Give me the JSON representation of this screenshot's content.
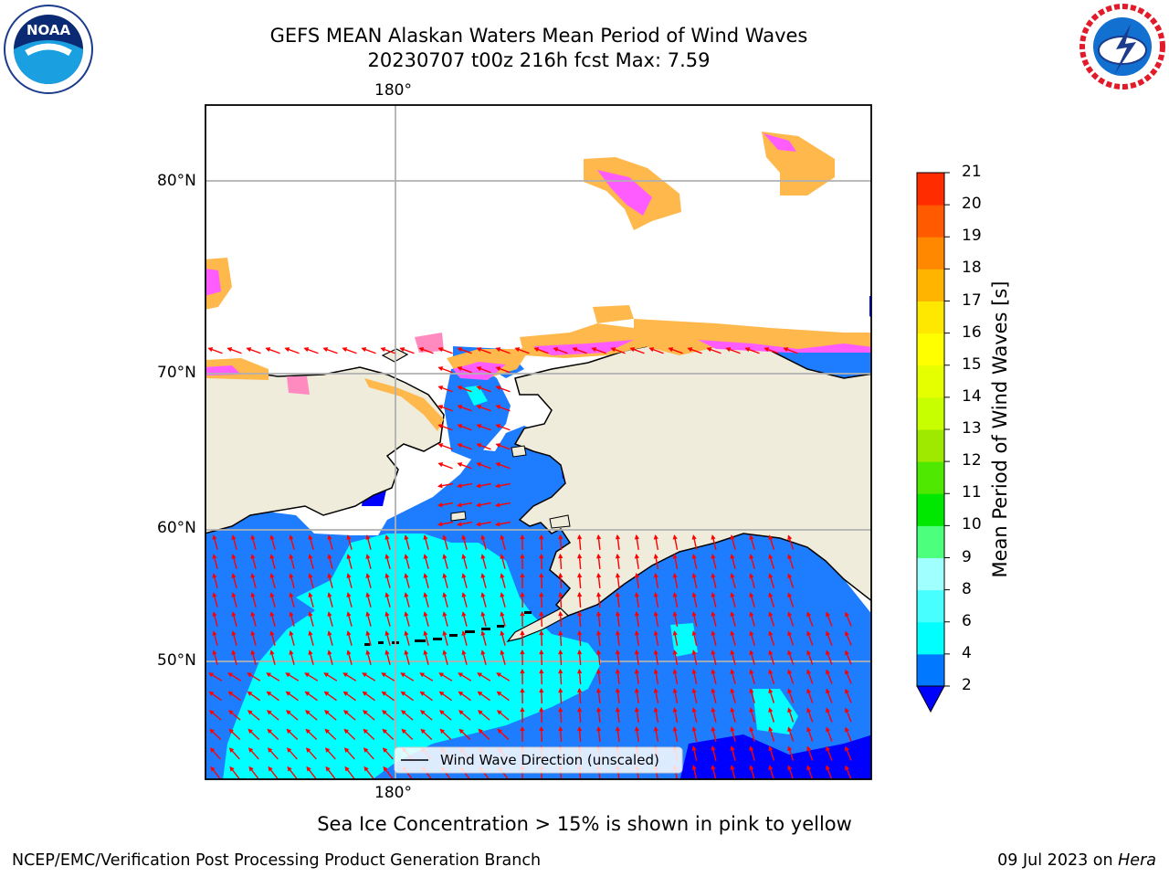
{
  "title": {
    "line1": "GEFS MEAN Alaskan Waters Mean Period of Wind Waves",
    "line2": "20230707 t00z 216h fcst   Max: 7.59"
  },
  "logos": {
    "left": "noara-logo",
    "right": "national-weather-service-logo"
  },
  "map": {
    "lon_label_top": "180°",
    "lon_label_bottom": "180°",
    "lat_labels": [
      "80°N",
      "70°N",
      "60°N",
      "50°N"
    ],
    "legend_text": "Wind Wave Direction (unscaled)",
    "colors": {
      "land": "#efecdc",
      "ocean_low": "#0000ff",
      "ocean_mid": "#1e7cff",
      "ocean_high": "#00ffff",
      "arrow": "#ff0000",
      "ice_pink": "#ff5cff",
      "ice_orange": "#ffb84c"
    }
  },
  "colorbar": {
    "label": "Mean Period of Wind Waves [s]",
    "ticks": [
      "2",
      "4",
      "6",
      "8",
      "9",
      "10",
      "11",
      "12",
      "13",
      "14",
      "15",
      "16",
      "17",
      "18",
      "19",
      "20",
      "21"
    ],
    "colors": [
      "#0078ff",
      "#00ffff",
      "#48ffff",
      "#a0ffff",
      "#4cff7c",
      "#00e800",
      "#4fe800",
      "#9fe800",
      "#c8ff00",
      "#e6ff00",
      "#ffff00",
      "#ffe800",
      "#ffb400",
      "#ff8800",
      "#ff5a00",
      "#ff2c00",
      "#ff0000"
    ],
    "extend_color": "#0000ff"
  },
  "caption": "Sea Ice Concentration > 15% is shown in pink to yellow",
  "footer": {
    "left": "NCEP/EMC/Verification Post Processing Product Generation Branch",
    "right_date": "09 Jul 2023 on ",
    "right_host": "Hera"
  }
}
